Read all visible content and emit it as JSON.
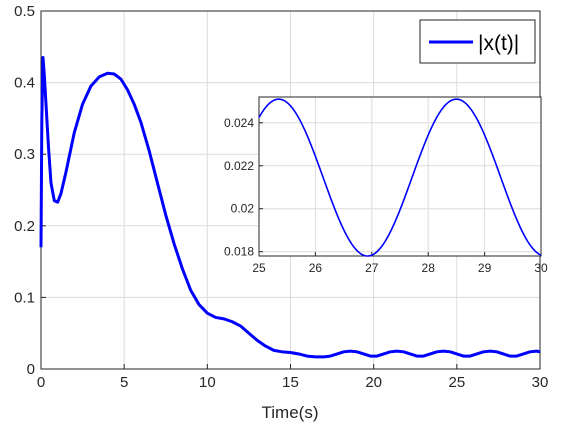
{
  "chart_data": [
    {
      "type": "line",
      "title": "",
      "xlabel": "Time(s)",
      "ylabel": "",
      "xlim": [
        0,
        30
      ],
      "ylim": [
        0,
        0.5
      ],
      "xticks": [
        0,
        5,
        10,
        15,
        20,
        25,
        30
      ],
      "yticks": [
        0,
        0.1,
        0.2,
        0.3,
        0.4,
        0.5
      ],
      "xtick_labels": [
        "0",
        "5",
        "10",
        "15",
        "20",
        "25",
        "30"
      ],
      "ytick_labels": [
        "0",
        "0.1",
        "0.2",
        "0.3",
        "0.4",
        "0.5"
      ],
      "grid": true,
      "legend": "top-right",
      "series": [
        {
          "name": "|x(t)|",
          "color": "#0000ff",
          "x": [
            0,
            0.05,
            0.12,
            0.2,
            0.3,
            0.45,
            0.6,
            0.8,
            1.0,
            1.2,
            1.5,
            2.0,
            2.5,
            3.0,
            3.5,
            4.0,
            4.4,
            4.8,
            5.2,
            5.6,
            6.0,
            6.5,
            7.0,
            7.5,
            8.0,
            8.5,
            9.0,
            9.5,
            10.0,
            10.5,
            11.0,
            11.5,
            12.0,
            12.5,
            13.0,
            13.5,
            14.0,
            14.5,
            15.0,
            15.5,
            16.0,
            16.5,
            17.0,
            17.4,
            17.8,
            18.2,
            18.6,
            19.0,
            19.4,
            19.8,
            20.2,
            20.6,
            21.0,
            21.4,
            21.8,
            22.2,
            22.6,
            23.0,
            23.4,
            23.8,
            24.2,
            24.6,
            25.0,
            25.4,
            25.8,
            26.2,
            26.6,
            27.0,
            27.4,
            27.8,
            28.2,
            28.6,
            29.0,
            29.4,
            29.8,
            30.0
          ],
          "y": [
            0.17,
            0.35,
            0.435,
            0.41,
            0.37,
            0.31,
            0.26,
            0.235,
            0.233,
            0.245,
            0.275,
            0.33,
            0.37,
            0.395,
            0.408,
            0.413,
            0.412,
            0.405,
            0.39,
            0.37,
            0.345,
            0.305,
            0.26,
            0.215,
            0.175,
            0.14,
            0.11,
            0.09,
            0.078,
            0.072,
            0.07,
            0.066,
            0.06,
            0.05,
            0.04,
            0.032,
            0.026,
            0.024,
            0.023,
            0.021,
            0.018,
            0.017,
            0.017,
            0.018,
            0.021,
            0.024,
            0.025,
            0.024,
            0.021,
            0.018,
            0.018,
            0.021,
            0.024,
            0.025,
            0.024,
            0.021,
            0.018,
            0.018,
            0.021,
            0.024,
            0.025,
            0.024,
            0.021,
            0.018,
            0.018,
            0.021,
            0.024,
            0.025,
            0.024,
            0.021,
            0.018,
            0.018,
            0.021,
            0.024,
            0.025,
            0.024
          ]
        }
      ]
    },
    {
      "type": "line",
      "title": "",
      "xlabel": "",
      "ylabel": "",
      "xlim": [
        25,
        30
      ],
      "ylim": [
        0.0178,
        0.0252
      ],
      "xticks": [
        25,
        26,
        27,
        28,
        29,
        30
      ],
      "yticks": [
        0.018,
        0.02,
        0.022,
        0.024
      ],
      "xtick_labels": [
        "25",
        "26",
        "27",
        "28",
        "29",
        "30"
      ],
      "ytick_labels": [
        "0.018",
        "0.02",
        "0.022",
        "0.024"
      ],
      "grid": true,
      "series": [
        {
          "color": "#0000ff",
          "model": {
            "mean": 0.02145,
            "amplitude": 0.00365,
            "period": 3.15,
            "peak_x": 25.35
          }
        }
      ]
    }
  ]
}
